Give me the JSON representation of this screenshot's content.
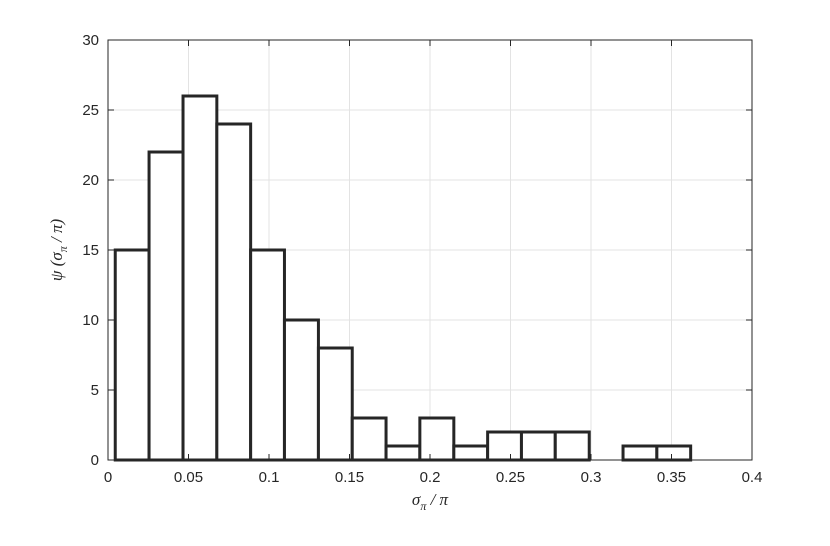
{
  "chart_data": {
    "type": "bar",
    "subtype": "histogram",
    "title": "",
    "xlabel_parts": {
      "sym": "σ",
      "sub": "π",
      "rest": " / π"
    },
    "ylabel_parts": {
      "fn": "ψ (",
      "sym": "σ",
      "sub": "π",
      "rest": " / π)"
    },
    "xlim": [
      0,
      0.4
    ],
    "ylim": [
      0,
      30
    ],
    "xticks": [
      0,
      0.05,
      0.1,
      0.15,
      0.2,
      0.25,
      0.3,
      0.35,
      0.4
    ],
    "xtick_labels": [
      "0",
      "0.05",
      "0.1",
      "0.15",
      "0.2",
      "0.25",
      "0.3",
      "0.35",
      "0.4"
    ],
    "yticks": [
      0,
      5,
      10,
      15,
      20,
      25,
      30
    ],
    "ytick_labels": [
      "0",
      "5",
      "10",
      "15",
      "20",
      "25",
      "30"
    ],
    "grid": true,
    "bin_edges": [
      0.0045,
      0.0255,
      0.0466,
      0.0676,
      0.0886,
      0.1096,
      0.1307,
      0.1517,
      0.1727,
      0.1937,
      0.2148,
      0.2358,
      0.2568,
      0.2778,
      0.2989,
      0.3199,
      0.3409,
      0.3619
    ],
    "values": [
      15,
      22,
      26,
      24,
      15,
      10,
      8,
      3,
      1,
      3,
      1,
      2,
      2,
      2,
      0,
      1,
      1
    ]
  }
}
